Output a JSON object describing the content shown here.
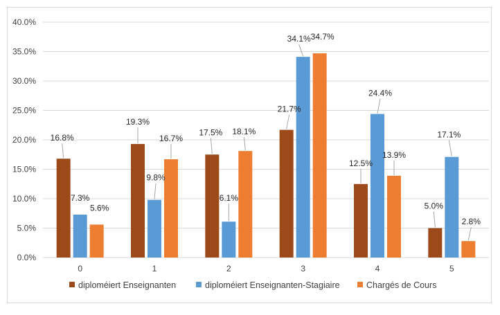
{
  "chart_data": {
    "type": "bar",
    "title": "",
    "xlabel": "",
    "ylabel": "",
    "categories": [
      "0",
      "1",
      "2",
      "3",
      "4",
      "5"
    ],
    "ylim": [
      0,
      40
    ],
    "yticks": [
      "0.0%",
      "5.0%",
      "10.0%",
      "15.0%",
      "20.0%",
      "25.0%",
      "30.0%",
      "35.0%",
      "40.0%"
    ],
    "grid": true,
    "legend_position": "bottom",
    "series": [
      {
        "name": "diploméiert Enseignanten",
        "color": "#9c4a1a",
        "values": [
          16.8,
          19.3,
          17.5,
          21.7,
          12.5,
          5.0
        ],
        "labels": [
          "16.8%",
          "19.3%",
          "17.5%",
          "21.7%",
          "12.5%",
          "5.0%"
        ]
      },
      {
        "name": "diploméiert Enseignanten-Stagiaire",
        "color": "#5b9bd5",
        "values": [
          7.3,
          9.8,
          6.1,
          34.1,
          24.4,
          17.1
        ],
        "labels": [
          "7.3%",
          "9.8%",
          "6.1%",
          "34.1%",
          "24.4%",
          "17.1%"
        ]
      },
      {
        "name": "Chargés de Cours",
        "color": "#ed7d31",
        "values": [
          5.6,
          16.7,
          18.1,
          34.7,
          13.9,
          2.8
        ],
        "labels": [
          "5.6%",
          "16.7%",
          "18.1%",
          "34.7%",
          "13.9%",
          "2.8%"
        ]
      }
    ]
  }
}
